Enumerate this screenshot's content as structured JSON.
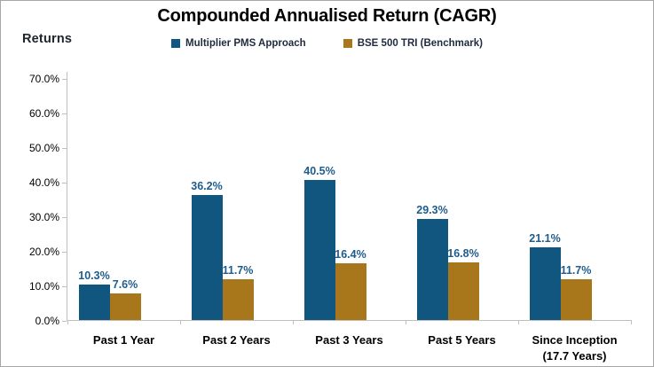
{
  "title": "Compounded Annualised Return (CAGR)",
  "y_axis_title": "Returns",
  "colors": {
    "series1": "#10567e",
    "series2": "#a8771b",
    "data_label": "#1e5c8c",
    "axis_line": "#bfbfbf",
    "frame_border": "#a6a6a6",
    "text": "#000000"
  },
  "legend": {
    "entries": [
      {
        "label": "Multiplier PMS Approach",
        "color": "#10567e"
      },
      {
        "label": "BSE 500 TRI (Benchmark)",
        "color": "#a8771b"
      }
    ]
  },
  "chart_data": {
    "type": "bar",
    "title": "Compounded Annualised Return (CAGR)",
    "xlabel": "",
    "ylabel": "Returns",
    "categories": [
      "Past 1 Year",
      "Past 2 Years",
      "Past 3 Years",
      "Past 5 Years",
      "Since Inception\n(17.7 Years)"
    ],
    "series": [
      {
        "name": "Multiplier PMS Approach",
        "color": "#10567e",
        "values": [
          10.3,
          36.2,
          40.5,
          29.3,
          21.1
        ]
      },
      {
        "name": "BSE 500 TRI (Benchmark)",
        "color": "#a8771b",
        "values": [
          7.6,
          11.7,
          16.4,
          16.8,
          11.7
        ]
      }
    ],
    "value_suffix": "%",
    "data_labels": true,
    "ylim": [
      0,
      70
    ],
    "ytick_labels": [
      "0.0%",
      "10.0%",
      "20.0%",
      "30.0%",
      "40.0%",
      "50.0%",
      "60.0%",
      "70.0%"
    ],
    "grid": false,
    "legend_position": "top-center"
  }
}
